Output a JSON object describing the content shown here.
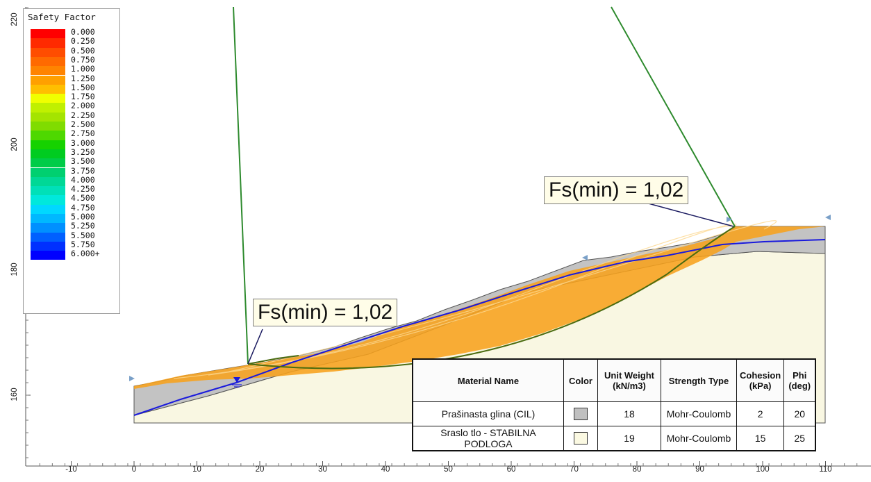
{
  "legend": {
    "title": "Safety Factor",
    "items": [
      {
        "label": "0.000",
        "color": "#ff0000"
      },
      {
        "label": "0.250",
        "color": "#ff2a00"
      },
      {
        "label": "0.500",
        "color": "#ff4d00"
      },
      {
        "label": "0.750",
        "color": "#ff6a00"
      },
      {
        "label": "1.000",
        "color": "#ff8400"
      },
      {
        "label": "1.250",
        "color": "#ffa000"
      },
      {
        "label": "1.500",
        "color": "#ffbf00"
      },
      {
        "label": "1.750",
        "color": "#f0ff00"
      },
      {
        "label": "2.000",
        "color": "#c0f000"
      },
      {
        "label": "2.250",
        "color": "#a4e400"
      },
      {
        "label": "2.500",
        "color": "#80dc00"
      },
      {
        "label": "2.750",
        "color": "#4ed800"
      },
      {
        "label": "3.000",
        "color": "#16d200"
      },
      {
        "label": "3.250",
        "color": "#00cc20"
      },
      {
        "label": "3.500",
        "color": "#00cc48"
      },
      {
        "label": "3.750",
        "color": "#00d070"
      },
      {
        "label": "4.000",
        "color": "#00d896"
      },
      {
        "label": "4.250",
        "color": "#00e0b8"
      },
      {
        "label": "4.500",
        "color": "#00e8dc"
      },
      {
        "label": "4.750",
        "color": "#00d8ff"
      },
      {
        "label": "5.000",
        "color": "#00b8ff"
      },
      {
        "label": "5.250",
        "color": "#0090ff"
      },
      {
        "label": "5.500",
        "color": "#0060ff"
      },
      {
        "label": "5.750",
        "color": "#0030ff"
      },
      {
        "label": "6.000+",
        "color": "#0000ff"
      }
    ]
  },
  "callouts": {
    "upper": "Fs(min) = 1,02",
    "lower": "Fs(min) = 1,02"
  },
  "axes": {
    "x_ticks": [
      "-10",
      "0",
      "10",
      "20",
      "30",
      "40",
      "50",
      "60",
      "70",
      "80",
      "90",
      "100",
      "110"
    ],
    "y_ticks": [
      "220",
      "200",
      "180",
      "160"
    ]
  },
  "materials": {
    "headers": [
      "Material Name",
      "Color",
      "Unit Weight (kN/m3)",
      "Strength Type",
      "Cohesion (kPa)",
      "Phi (deg)"
    ],
    "rows": [
      {
        "name": "Prašinasta glina (CIL)",
        "color": "#c0c0c0",
        "unit_weight": "18",
        "strength_type": "Mohr-Coulomb",
        "cohesion": "2",
        "phi": "20"
      },
      {
        "name": "Sraslo tlo - STABILNA PODLOGA",
        "color": "#fbf9e2",
        "unit_weight": "19",
        "strength_type": "Mohr-Coulomb",
        "cohesion": "15",
        "phi": "25"
      }
    ]
  },
  "colors": {
    "clay": "#c3c3c3",
    "bedrock": "#f9f7e2",
    "slip_zone": "#f7a21c",
    "water_table": "#1a1adc",
    "radius_line": "#2d8a2d",
    "critical_surface": "#4a6b0f"
  }
}
